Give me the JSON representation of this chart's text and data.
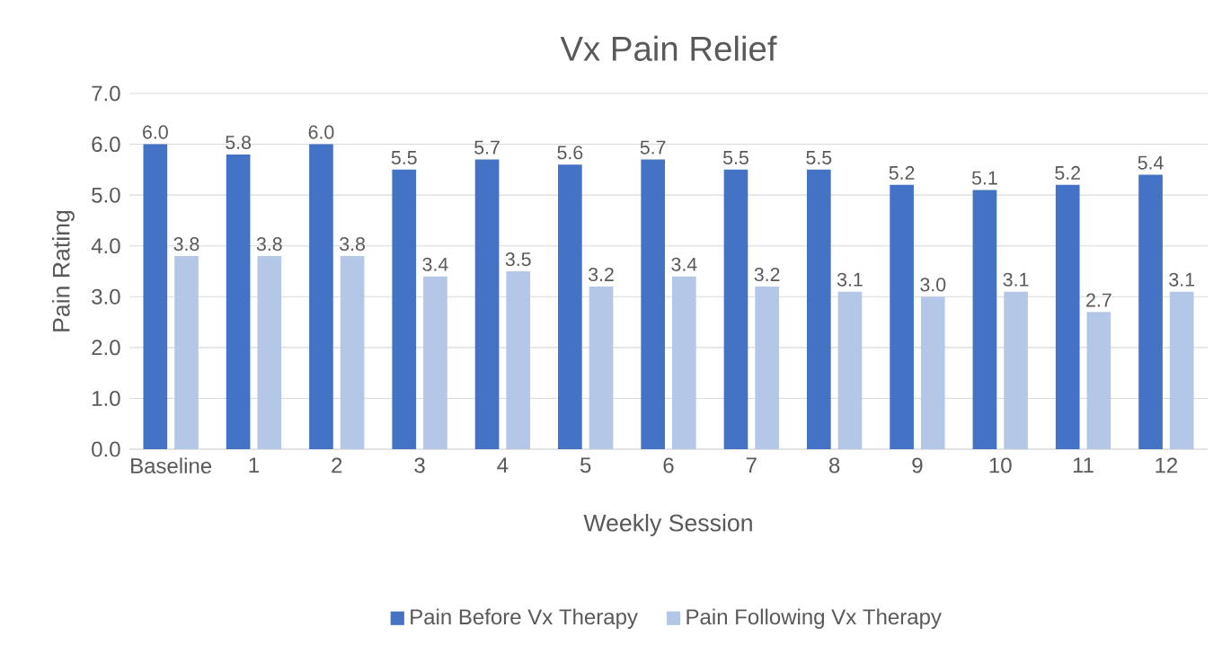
{
  "chart_data": {
    "type": "bar",
    "title": "Vx Pain Relief",
    "xlabel": "Weekly Session",
    "ylabel": "Pain Rating",
    "categories": [
      "Baseline",
      "1",
      "2",
      "3",
      "4",
      "5",
      "6",
      "7",
      "8",
      "9",
      "10",
      "11",
      "12"
    ],
    "series": [
      {
        "name": "Pain Before Vx Therapy",
        "color": "#4472c4",
        "values": [
          6.0,
          5.8,
          6.0,
          5.5,
          5.7,
          5.6,
          5.7,
          5.5,
          5.5,
          5.2,
          5.1,
          5.2,
          5.4
        ],
        "value_labels": [
          "6.0",
          "5.8",
          "6.0",
          "5.5",
          "5.7",
          "5.6",
          "5.7",
          "5.5",
          "5.5",
          "5.2",
          "5.1",
          "5.2",
          "5.4"
        ]
      },
      {
        "name": "Pain Following Vx Therapy",
        "color": "#b4c7e7",
        "values": [
          3.8,
          3.8,
          3.8,
          3.4,
          3.5,
          3.2,
          3.4,
          3.2,
          3.1,
          3.0,
          3.1,
          2.7,
          3.1
        ],
        "value_labels": [
          "3.8",
          "3.8",
          "3.8",
          "3.4",
          "3.5",
          "3.2",
          "3.4",
          "3.2",
          "3.1",
          "3.0",
          "3.1",
          "2.7",
          "3.1"
        ]
      }
    ],
    "ylim": [
      0,
      7
    ],
    "yticks": [
      {
        "value": 0,
        "label": "0.0"
      },
      {
        "value": 1,
        "label": "1.0"
      },
      {
        "value": 2,
        "label": "2.0"
      },
      {
        "value": 3,
        "label": "3.0"
      },
      {
        "value": 4,
        "label": "4.0"
      },
      {
        "value": 5,
        "label": "5.0"
      },
      {
        "value": 6,
        "label": "6.0"
      },
      {
        "value": 7,
        "label": "7.0"
      }
    ],
    "grid": "y",
    "legend": "bottom"
  }
}
